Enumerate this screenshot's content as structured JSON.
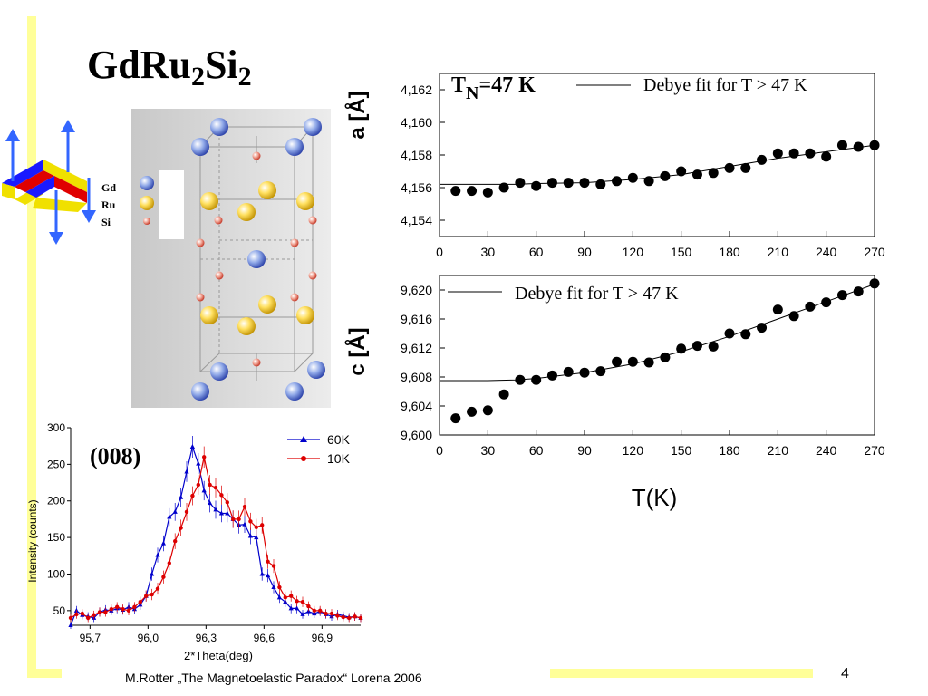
{
  "slide": {
    "title_main": "GdRu",
    "title_sub1": "2",
    "title_mid": "Si",
    "title_sub2": "2",
    "footer": "M.Rotter „The Magnetoelastic Paradox“ Lorena 2006",
    "page_number": "4"
  },
  "atom_legend": {
    "gd": "Gd",
    "ru": "Ru",
    "si": "Si"
  },
  "colors": {
    "deco_bar": "#ffff99",
    "gd_atom": "#3050d0",
    "ru_atom": "#f5c800",
    "si_atom": "#d04020",
    "series_60K": "#0000cc",
    "series_10K": "#dd0000"
  },
  "chart_data": [
    {
      "type": "scatter",
      "ylabel": "a [Å]",
      "annotation_main": "T",
      "annotation_sub": "N",
      "annotation_rest": "=47 K",
      "legend_fit": "Debye fit for T > 47 K",
      "legend_position": "top-right",
      "xlim": [
        0,
        270
      ],
      "ylim": [
        4.153,
        4.163
      ],
      "x_ticks": [
        "0",
        "30",
        "60",
        "90",
        "120",
        "150",
        "180",
        "210",
        "240",
        "270"
      ],
      "y_ticks": [
        "4,154",
        "4,156",
        "4,158",
        "4,160",
        "4,162"
      ],
      "y_tick_values": [
        4.154,
        4.156,
        4.158,
        4.16,
        4.162
      ],
      "x": [
        10,
        20,
        30,
        40,
        50,
        60,
        70,
        80,
        90,
        100,
        110,
        120,
        130,
        140,
        150,
        160,
        170,
        180,
        190,
        200,
        210,
        220,
        230,
        240,
        250,
        260,
        270
      ],
      "y": [
        4.1558,
        4.1558,
        4.1557,
        4.156,
        4.1563,
        4.1561,
        4.1563,
        4.1563,
        4.1563,
        4.1562,
        4.1564,
        4.1566,
        4.1564,
        4.1567,
        4.157,
        4.1568,
        4.1569,
        4.1572,
        4.1572,
        4.1577,
        4.1581,
        4.1581,
        4.1581,
        4.1579,
        4.1586,
        4.1585,
        4.1586
      ],
      "fit_x": [
        0,
        30,
        47,
        60,
        90,
        120,
        150,
        180,
        210,
        240,
        270
      ],
      "fit_y": [
        4.1562,
        4.1562,
        4.1562,
        4.15625,
        4.1563,
        4.1565,
        4.1568,
        4.1573,
        4.1578,
        4.1582,
        4.1586
      ]
    },
    {
      "type": "scatter",
      "ylabel": "c [Å]",
      "xlabel": "T(K)",
      "legend_fit": "Debye fit for T > 47 K",
      "legend_position": "top-left",
      "xlim": [
        0,
        270
      ],
      "ylim": [
        9.6,
        9.622
      ],
      "x_ticks": [
        "0",
        "30",
        "60",
        "90",
        "120",
        "150",
        "180",
        "210",
        "240",
        "270"
      ],
      "y_ticks": [
        "9,600",
        "9,604",
        "9,608",
        "9,612",
        "9,616",
        "9,620"
      ],
      "y_tick_values": [
        9.6,
        9.604,
        9.608,
        9.612,
        9.616,
        9.62
      ],
      "x": [
        10,
        20,
        30,
        40,
        50,
        60,
        70,
        80,
        90,
        100,
        110,
        120,
        130,
        140,
        150,
        160,
        170,
        180,
        190,
        200,
        210,
        220,
        230,
        240,
        250,
        260,
        270
      ],
      "y": [
        9.6023,
        9.6032,
        9.6034,
        9.6056,
        9.6076,
        9.6076,
        9.6082,
        9.6087,
        9.6086,
        9.6088,
        9.6101,
        9.6101,
        9.61,
        9.6107,
        9.6119,
        9.6123,
        9.6122,
        9.614,
        9.6139,
        9.6148,
        9.6173,
        9.6164,
        9.6177,
        9.6183,
        9.6193,
        9.6198,
        9.6209
      ],
      "fit_x": [
        0,
        30,
        47,
        60,
        90,
        120,
        150,
        180,
        210,
        240,
        270
      ],
      "fit_y": [
        9.6075,
        9.6075,
        9.6076,
        9.6078,
        9.6086,
        9.6098,
        9.6115,
        9.6136,
        9.616,
        9.6184,
        9.6208
      ]
    },
    {
      "type": "line",
      "annotation": "(008)",
      "ylabel": "Intensity (counts)",
      "xlabel": "2*Theta(deg)",
      "legend_position": "top-right",
      "xlim": [
        95.6,
        97.1
      ],
      "ylim": [
        30,
        300
      ],
      "x_ticks": [
        "95,7",
        "96,0",
        "96,3",
        "96,6",
        "96,9"
      ],
      "x_tick_values": [
        95.7,
        96.0,
        96.3,
        96.6,
        96.9
      ],
      "y_ticks": [
        "50",
        "100",
        "150",
        "200",
        "250",
        "300"
      ],
      "y_tick_values": [
        50,
        100,
        150,
        200,
        250,
        300
      ],
      "series": [
        {
          "name": "60K",
          "x": [
            95.6,
            95.63,
            95.66,
            95.69,
            95.72,
            95.75,
            95.78,
            95.81,
            95.84,
            95.87,
            95.9,
            95.93,
            95.96,
            95.99,
            96.02,
            96.05,
            96.08,
            96.11,
            96.14,
            96.17,
            96.2,
            96.23,
            96.26,
            96.29,
            96.32,
            96.35,
            96.38,
            96.41,
            96.44,
            96.47,
            96.5,
            96.53,
            96.56,
            96.59,
            96.62,
            96.65,
            96.68,
            96.71,
            96.74,
            96.77,
            96.8,
            96.83,
            96.86,
            96.89,
            96.92,
            96.95,
            96.98,
            97.01,
            97.04,
            97.07,
            97.1
          ],
          "y": [
            30,
            50,
            44,
            42,
            40,
            48,
            51,
            50,
            53,
            51,
            55,
            52,
            58,
            70,
            100,
            126,
            142,
            178,
            185,
            205,
            240,
            274,
            251,
            214,
            197,
            188,
            183,
            183,
            175,
            167,
            168,
            152,
            150,
            100,
            98,
            82,
            68,
            62,
            53,
            53,
            45,
            49,
            46,
            49,
            45,
            42,
            45,
            43,
            41,
            42,
            40
          ]
        },
        {
          "name": "10K",
          "x": [
            95.6,
            95.63,
            95.66,
            95.69,
            95.72,
            95.75,
            95.78,
            95.81,
            95.84,
            95.87,
            95.9,
            95.93,
            95.96,
            95.99,
            96.02,
            96.05,
            96.08,
            96.11,
            96.14,
            96.17,
            96.2,
            96.23,
            96.26,
            96.29,
            96.32,
            96.35,
            96.38,
            96.41,
            96.44,
            96.47,
            96.5,
            96.53,
            96.56,
            96.59,
            96.62,
            96.65,
            96.68,
            96.71,
            96.74,
            96.77,
            96.8,
            96.83,
            96.86,
            96.89,
            96.92,
            96.95,
            96.98,
            97.01,
            97.04,
            97.07,
            97.1
          ],
          "y": [
            40,
            45,
            46,
            40,
            44,
            48,
            48,
            52,
            55,
            52,
            50,
            55,
            62,
            70,
            72,
            80,
            96,
            115,
            145,
            163,
            185,
            207,
            222,
            260,
            222,
            218,
            208,
            198,
            175,
            175,
            192,
            172,
            164,
            167,
            117,
            111,
            82,
            68,
            70,
            63,
            62,
            56,
            50,
            50,
            46,
            46,
            43,
            41,
            40,
            42,
            40
          ]
        }
      ]
    }
  ]
}
